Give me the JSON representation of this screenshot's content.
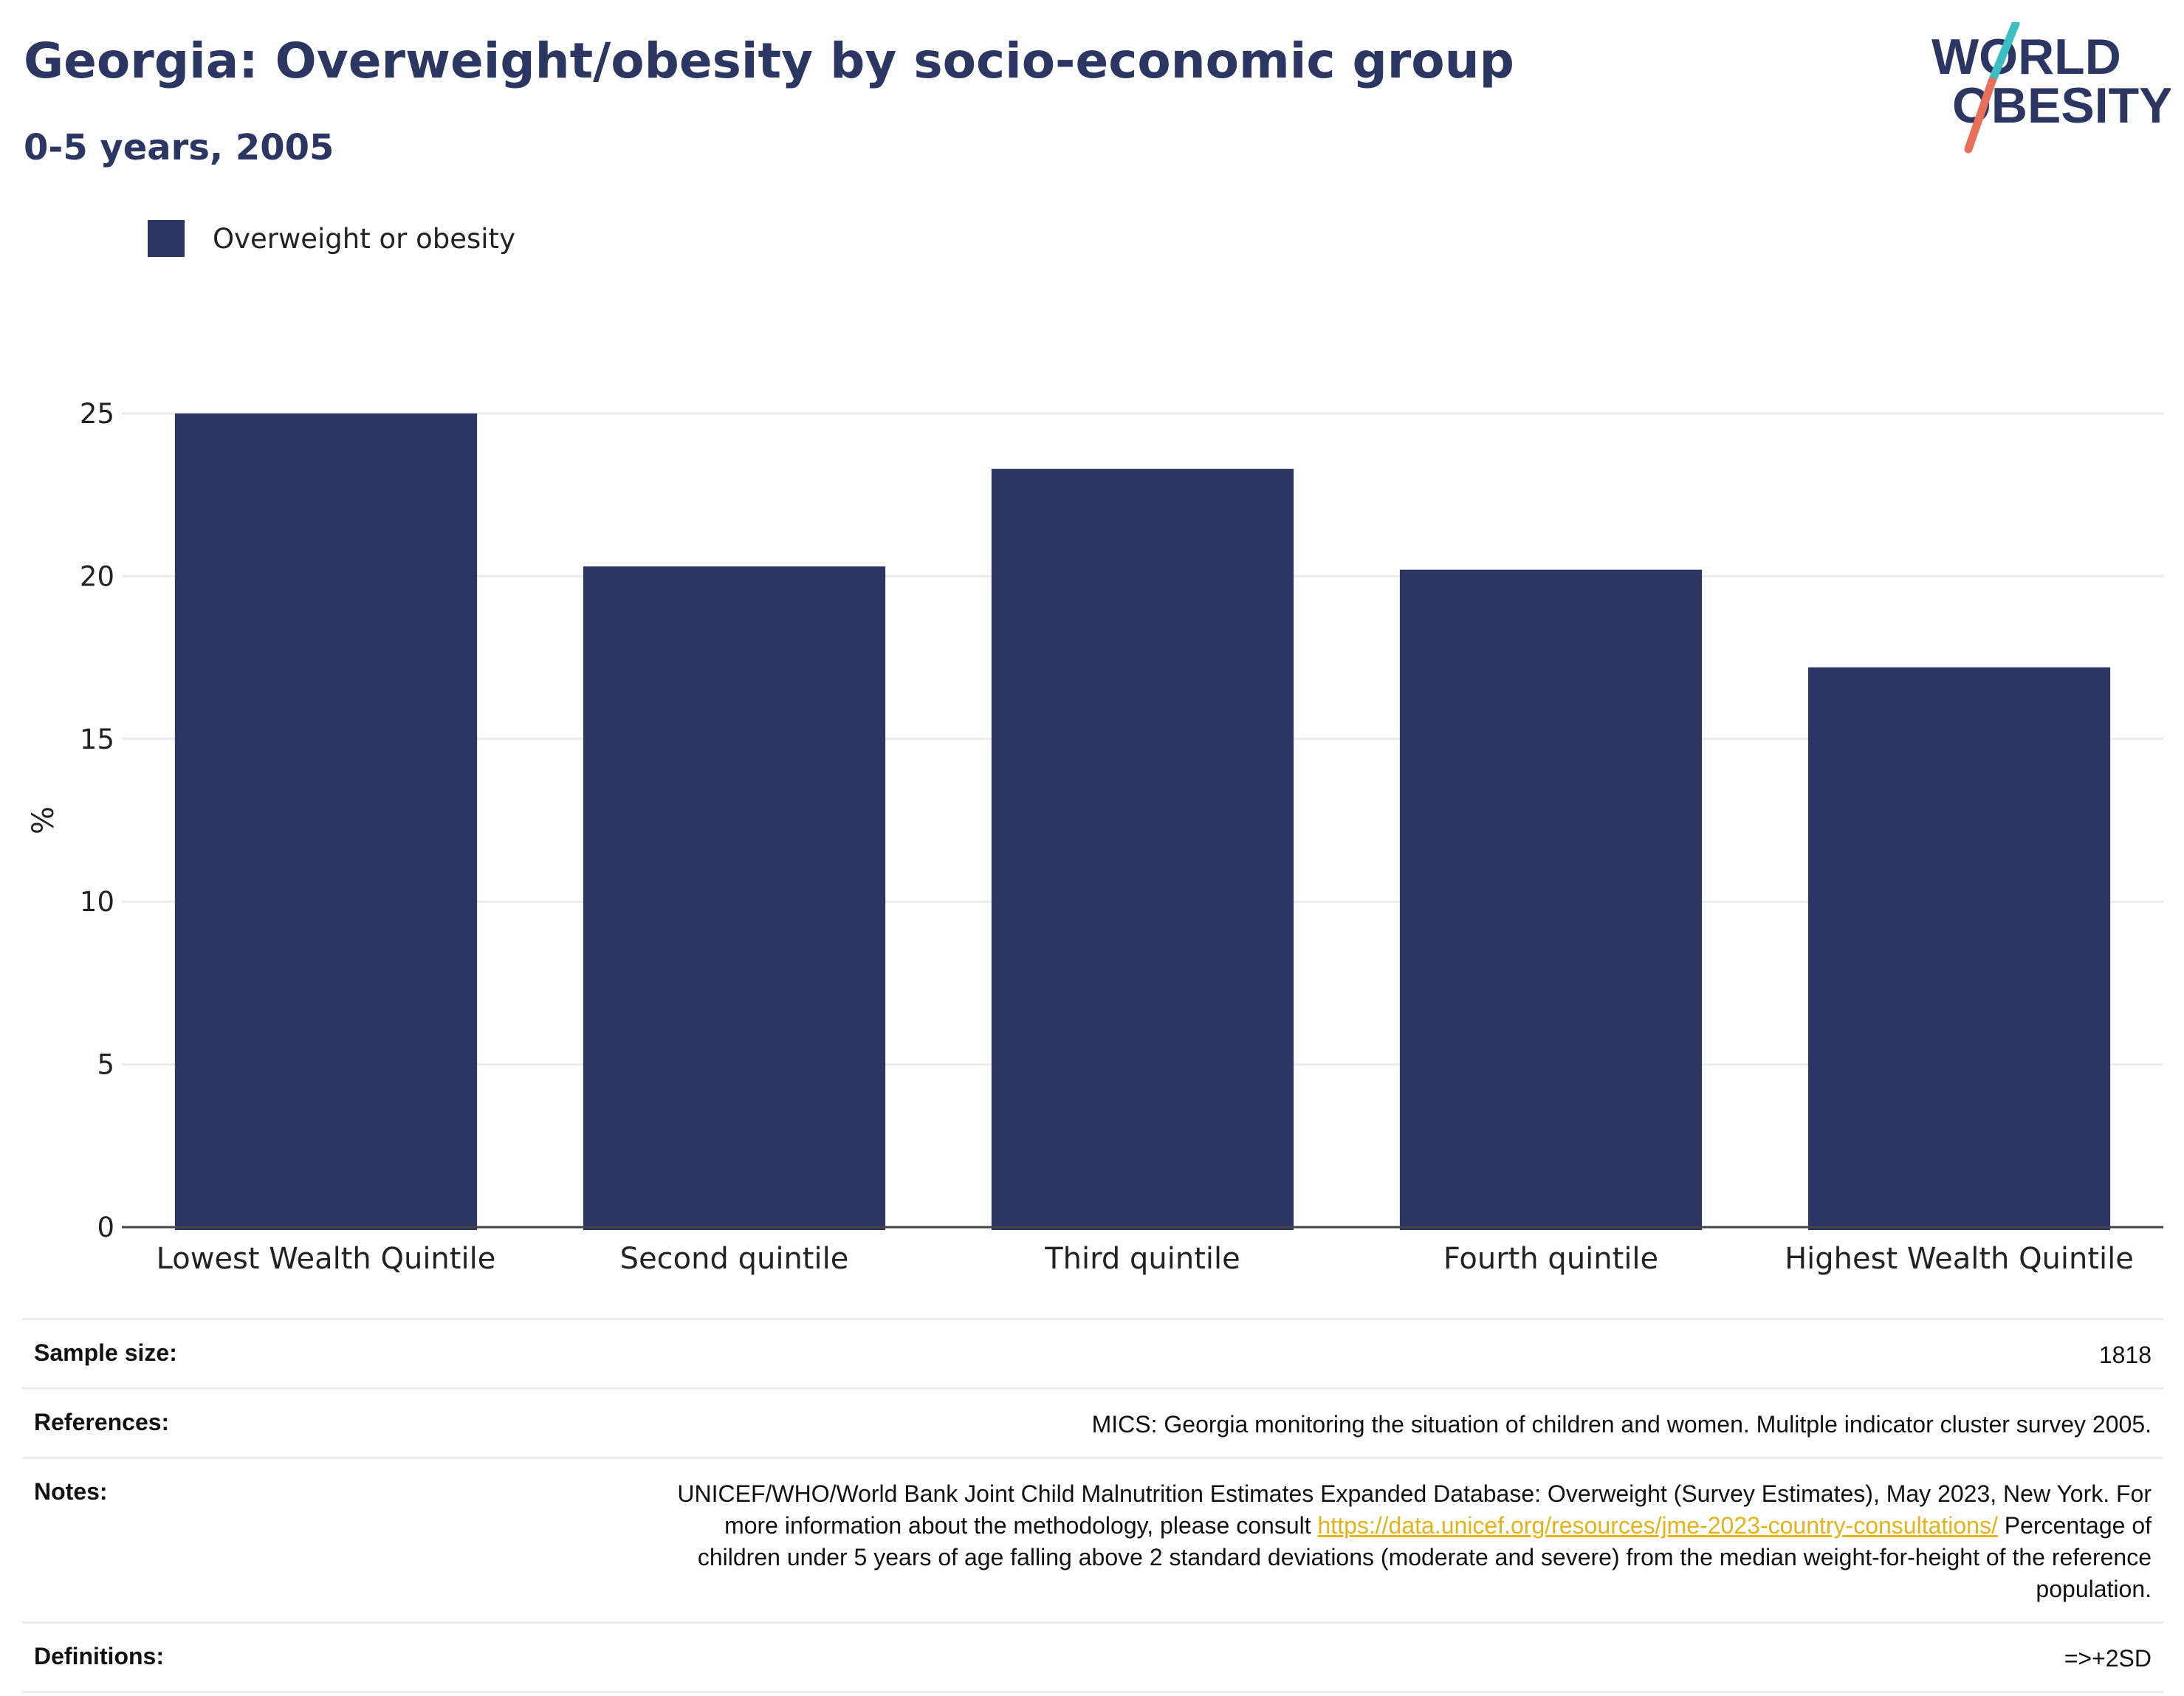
{
  "header": {
    "title": "Georgia: Overweight/obesity by socio-economic group",
    "subtitle": "0-5 years, 2005"
  },
  "logo": {
    "line1": "WORLD",
    "line2": "OBESITY",
    "slash_colors": [
      "#3bbfc4",
      "#e8705a"
    ],
    "text_color": "#2b3663"
  },
  "chart_data": {
    "type": "bar",
    "categories": [
      "Lowest Wealth Quintile",
      "Second quintile",
      "Third quintile",
      "Fourth quintile",
      "Highest Wealth Quintile"
    ],
    "series": [
      {
        "name": "Overweight or obesity",
        "values": [
          25.0,
          20.3,
          23.3,
          20.2,
          17.2
        ],
        "color": "#2b3663"
      }
    ],
    "ylabel": "%",
    "ylim": [
      0,
      25
    ],
    "yticks": [
      0,
      5,
      10,
      15,
      20,
      25
    ],
    "grid": true,
    "legend": "top-left"
  },
  "footer": {
    "rows": [
      {
        "label": "Sample size:",
        "value": "1818"
      },
      {
        "label": "References:",
        "value": "MICS: Georgia monitoring the situation of children and women. Mulitple indicator cluster survey 2005."
      },
      {
        "label": "Notes:",
        "value_pre": "UNICEF/WHO/World Bank Joint Child Malnutrition Estimates Expanded Database: Overweight (Survey Estimates), May 2023, New York. For more information about the methodology, please consult",
        "link": "https://data.unicef.org/resources/jme-2023-country-consultations/",
        "value_post": "Percentage of children under 5 years of age falling above 2 standard deviations (moderate and severe) from the median weight-for-height of the reference population."
      },
      {
        "label": "Definitions:",
        "value": "=>+2SD"
      }
    ]
  }
}
